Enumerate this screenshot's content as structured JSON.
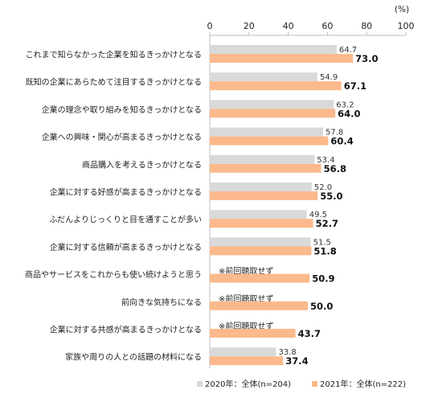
{
  "chart_data": {
    "type": "bar",
    "orientation": "horizontal",
    "unit_label": "(%)",
    "xlim": [
      0,
      100
    ],
    "ticks": [
      "0",
      "20",
      "40",
      "60",
      "80",
      "100"
    ],
    "grid": false,
    "legend_position": "bottom-right",
    "categories": [
      "これまで知らなかった企業を知るきっかけとなる",
      "既知の企業にあらためて注目するきっかけとなる",
      "企業の理念や取り組みを知るきっかけとなる",
      "企業への興味・関心が高まるきっかけとなる",
      "商品購入を考えるきっかけとなる",
      "企業に対する好感が高まるきっかけとなる",
      "ふだんよりじっくりと目を通すことが多い",
      "企業に対する信頼が高まるきっかけとなる",
      "商品やサービスをこれからも使い続けようと思う",
      "前向きな気持ちになる",
      "企業に対する共感が高まるきっかけとなる",
      "家族や周りの人との話題の材料になる"
    ],
    "series": [
      {
        "name": "2020年：全体(n=204)",
        "color": "#d9d9d9",
        "values": [
          64.7,
          54.9,
          63.2,
          57.8,
          53.4,
          52.0,
          49.5,
          51.5,
          null,
          null,
          null,
          33.8
        ],
        "labels": [
          "64.7",
          "54.9",
          "63.2",
          "57.8",
          "53.4",
          "52.0",
          "49.5",
          "51.5",
          null,
          null,
          null,
          "33.8"
        ]
      },
      {
        "name": "2021年：全体(n=222)",
        "color": "#fbb98c",
        "values": [
          73.0,
          67.1,
          64.0,
          60.4,
          56.8,
          55.0,
          52.7,
          51.8,
          50.9,
          50.0,
          43.7,
          37.4
        ],
        "labels": [
          "73.0",
          "67.1",
          "64.0",
          "60.4",
          "56.8",
          "55.0",
          "52.7",
          "51.8",
          "50.9",
          "50.0",
          "43.7",
          "37.4"
        ]
      }
    ],
    "missing_note": "※前回聴取せず"
  }
}
